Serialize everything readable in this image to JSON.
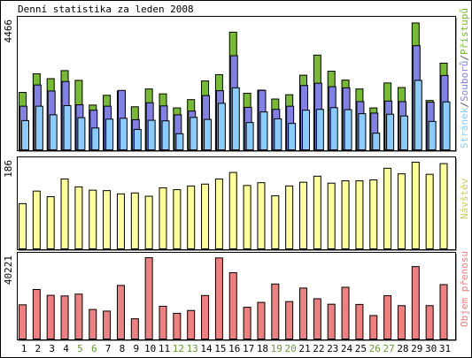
{
  "title": "Denní statistika za leden 2008",
  "colors": {
    "hits": "#77bb33",
    "files": "#8080e6",
    "pages": "#88ccff",
    "visits": "#ffff99",
    "kbytes": "#f08080",
    "weekend_label": "#669933",
    "weekday_label": "#000000",
    "legend_sep": "#555555",
    "legend_visits": "#cccc66"
  },
  "chart_data": [
    {
      "type": "bar",
      "panel": "hits-files-pages",
      "categories": [
        "1",
        "2",
        "3",
        "4",
        "5",
        "6",
        "7",
        "8",
        "9",
        "10",
        "11",
        "12",
        "13",
        "14",
        "15",
        "16",
        "17",
        "18",
        "19",
        "20",
        "21",
        "22",
        "23",
        "24",
        "25",
        "26",
        "27",
        "28",
        "29",
        "30",
        "31"
      ],
      "weekend_days": [
        "5",
        "6",
        "12",
        "13",
        "19",
        "20",
        "26",
        "27"
      ],
      "ymax_label": "4466",
      "ylim": [
        0,
        4466
      ],
      "legend": [
        "Stránek",
        "Souborů",
        "Přístupů"
      ],
      "legend_separator": "/",
      "series": [
        {
          "name": "Přístupů",
          "values": [
            2000,
            2650,
            2480,
            2760,
            2420,
            1560,
            1900,
            2050,
            1500,
            2120,
            1950,
            1460,
            1750,
            2400,
            2620,
            4100,
            1970,
            2080,
            1770,
            1920,
            2600,
            3300,
            2740,
            2430,
            2120,
            1460,
            2330,
            2170,
            4420,
            1720,
            3020
          ]
        },
        {
          "name": "Souborů",
          "values": [
            1520,
            2260,
            2050,
            2380,
            1570,
            1380,
            1520,
            2070,
            1050,
            1640,
            1530,
            1220,
            1350,
            1890,
            2060,
            3280,
            1480,
            2070,
            1410,
            1520,
            2240,
            2320,
            2200,
            2160,
            1680,
            1280,
            1700,
            1680,
            3630,
            1660,
            2590
          ]
        },
        {
          "name": "Stránek",
          "values": [
            1020,
            1520,
            1220,
            1540,
            1120,
            760,
            1070,
            1100,
            710,
            1030,
            1010,
            560,
            1130,
            1060,
            1620,
            2160,
            950,
            1320,
            1080,
            920,
            1380,
            1410,
            1470,
            1400,
            1260,
            580,
            1240,
            1180,
            2420,
            990,
            1670
          ]
        }
      ]
    },
    {
      "type": "bar",
      "panel": "visits",
      "categories": [
        "1",
        "2",
        "3",
        "4",
        "5",
        "6",
        "7",
        "8",
        "9",
        "10",
        "11",
        "12",
        "13",
        "14",
        "15",
        "16",
        "17",
        "18",
        "19",
        "20",
        "21",
        "22",
        "23",
        "24",
        "25",
        "26",
        "27",
        "28",
        "29",
        "30",
        "31"
      ],
      "ymax_label": "186",
      "ylim": [
        0,
        186
      ],
      "legend": [
        "Návštěv"
      ],
      "series": [
        {
          "name": "Návštěv",
          "values": [
            97,
            124,
            112,
            150,
            133,
            126,
            125,
            118,
            120,
            113,
            131,
            127,
            135,
            139,
            150,
            164,
            136,
            142,
            114,
            135,
            143,
            156,
            141,
            146,
            146,
            148,
            173,
            161,
            186,
            160,
            183
          ]
        }
      ]
    },
    {
      "type": "bar",
      "panel": "kbytes",
      "categories": [
        "1",
        "2",
        "3",
        "4",
        "5",
        "6",
        "7",
        "8",
        "9",
        "10",
        "11",
        "12",
        "13",
        "14",
        "15",
        "16",
        "17",
        "18",
        "19",
        "20",
        "21",
        "22",
        "23",
        "24",
        "25",
        "26",
        "27",
        "28",
        "29",
        "30",
        "31"
      ],
      "ymax_label": "40221",
      "ylim": [
        0,
        40221
      ],
      "legend": [
        "Objem přenosu"
      ],
      "series": [
        {
          "name": "Objem přenosu",
          "values": [
            16900,
            24500,
            21600,
            21300,
            22200,
            14600,
            13800,
            26500,
            10000,
            40200,
            16200,
            12700,
            14100,
            21500,
            40100,
            32800,
            15700,
            18100,
            27200,
            18500,
            25200,
            19900,
            17200,
            25600,
            17100,
            11600,
            21400,
            16500,
            35800,
            16500,
            26900
          ]
        }
      ]
    }
  ]
}
